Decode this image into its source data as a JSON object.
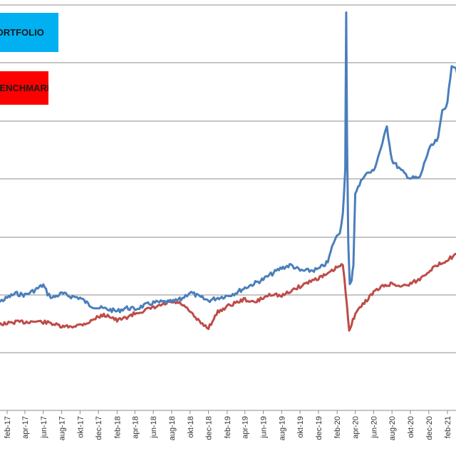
{
  "colors": {
    "portfolio": "#4a7ebb",
    "benchmark": "#be4b48",
    "grid": "#8c8c8c",
    "legend_portfolio_bg": "#00b0f0",
    "legend_benchmark_bg": "#ff0000"
  },
  "legend": {
    "portfolio_label": "PORTFOLIO",
    "benchmark_label": "BENCHMARK"
  },
  "chart_data": {
    "type": "line",
    "xlabel": "",
    "ylabel": "",
    "grid": true,
    "legend_placement": "top-left",
    "x_ticks": [
      "feb-17",
      "apr-17",
      "jun-17",
      "aug-17",
      "okt-17",
      "dec-17",
      "feb-18",
      "apr-18",
      "jun-18",
      "aug-18",
      "okt-18",
      "dec-18",
      "feb-19",
      "apr-19",
      "jun-19",
      "aug-19",
      "okt-19",
      "dec-19",
      "feb-20",
      "apr-20",
      "jun-20",
      "aug-20",
      "okt-20",
      "dec-20",
      "feb-21"
    ],
    "series": [
      {
        "name": "PORTFOLIO",
        "points": [
          [
            "2016-12-01",
            432
          ],
          [
            "2017-01-01",
            425
          ],
          [
            "2017-02-01",
            418
          ],
          [
            "2017-03-01",
            412
          ],
          [
            "2017-04-01",
            414
          ],
          [
            "2017-05-01",
            408
          ],
          [
            "2017-06-01",
            400
          ],
          [
            "2017-06-15",
            412
          ],
          [
            "2017-07-01",
            418
          ],
          [
            "2017-08-01",
            412
          ],
          [
            "2017-09-01",
            416
          ],
          [
            "2017-10-01",
            418
          ],
          [
            "2017-11-01",
            428
          ],
          [
            "2017-12-01",
            432
          ],
          [
            "2018-01-01",
            434
          ],
          [
            "2018-02-01",
            437
          ],
          [
            "2018-03-01",
            432
          ],
          [
            "2018-04-01",
            434
          ],
          [
            "2018-05-01",
            429
          ],
          [
            "2018-06-01",
            425
          ],
          [
            "2018-07-01",
            424
          ],
          [
            "2018-08-01",
            424
          ],
          [
            "2018-09-01",
            420
          ],
          [
            "2018-10-01",
            410
          ],
          [
            "2018-11-01",
            417
          ],
          [
            "2018-12-01",
            422
          ],
          [
            "2019-01-01",
            418
          ],
          [
            "2019-02-01",
            415
          ],
          [
            "2019-03-01",
            411
          ],
          [
            "2019-04-01",
            404
          ],
          [
            "2019-05-01",
            398
          ],
          [
            "2019-06-01",
            392
          ],
          [
            "2019-07-01",
            384
          ],
          [
            "2019-08-01",
            376
          ],
          [
            "2019-09-01",
            372
          ],
          [
            "2019-10-01",
            380
          ],
          [
            "2019-11-01",
            380
          ],
          [
            "2019-12-01",
            378
          ],
          [
            "2020-01-01",
            368
          ],
          [
            "2020-01-20",
            340
          ],
          [
            "2020-02-10",
            325
          ],
          [
            "2020-02-20",
            300
          ],
          [
            "2020-02-28",
            235
          ],
          [
            "2020-03-02",
            20
          ],
          [
            "2020-03-05",
            200
          ],
          [
            "2020-03-09",
            340
          ],
          [
            "2020-03-14",
            400
          ],
          [
            "2020-03-20",
            395
          ],
          [
            "2020-03-26",
            370
          ],
          [
            "2020-04-01",
            270
          ],
          [
            "2020-04-15",
            260
          ],
          [
            "2020-05-01",
            245
          ],
          [
            "2020-06-01",
            240
          ],
          [
            "2020-07-01",
            200
          ],
          [
            "2020-07-15",
            178
          ],
          [
            "2020-08-01",
            225
          ],
          [
            "2020-09-01",
            240
          ],
          [
            "2020-10-01",
            250
          ],
          [
            "2020-11-01",
            250
          ],
          [
            "2020-12-01",
            210
          ],
          [
            "2021-01-01",
            195
          ],
          [
            "2021-01-15",
            155
          ],
          [
            "2021-02-01",
            145
          ],
          [
            "2021-02-15",
            90
          ],
          [
            "2021-03-01",
            95
          ],
          [
            "2021-03-15",
            115
          ]
        ]
      },
      {
        "name": "BENCHMARK",
        "points": [
          [
            "2016-12-01",
            458
          ],
          [
            "2017-01-01",
            455
          ],
          [
            "2017-02-01",
            454
          ],
          [
            "2017-03-01",
            452
          ],
          [
            "2017-04-01",
            452
          ],
          [
            "2017-05-01",
            451
          ],
          [
            "2017-06-01",
            452
          ],
          [
            "2017-07-01",
            454
          ],
          [
            "2017-08-01",
            459
          ],
          [
            "2017-09-01",
            458
          ],
          [
            "2017-10-01",
            456
          ],
          [
            "2017-11-01",
            452
          ],
          [
            "2017-12-01",
            444
          ],
          [
            "2018-01-01",
            442
          ],
          [
            "2018-02-01",
            450
          ],
          [
            "2018-03-01",
            446
          ],
          [
            "2018-04-01",
            440
          ],
          [
            "2018-05-01",
            436
          ],
          [
            "2018-06-01",
            432
          ],
          [
            "2018-07-01",
            428
          ],
          [
            "2018-08-01",
            424
          ],
          [
            "2018-09-01",
            426
          ],
          [
            "2018-10-01",
            438
          ],
          [
            "2018-11-01",
            452
          ],
          [
            "2018-12-01",
            460
          ],
          [
            "2019-01-01",
            438
          ],
          [
            "2019-02-01",
            430
          ],
          [
            "2019-03-01",
            425
          ],
          [
            "2019-04-01",
            420
          ],
          [
            "2019-05-01",
            425
          ],
          [
            "2019-06-01",
            418
          ],
          [
            "2019-07-01",
            412
          ],
          [
            "2019-08-01",
            416
          ],
          [
            "2019-09-01",
            408
          ],
          [
            "2019-10-01",
            402
          ],
          [
            "2019-11-01",
            395
          ],
          [
            "2019-12-01",
            390
          ],
          [
            "2020-01-01",
            385
          ],
          [
            "2020-02-01",
            375
          ],
          [
            "2020-02-20",
            372
          ],
          [
            "2020-03-05",
            430
          ],
          [
            "2020-03-12",
            462
          ],
          [
            "2020-03-20",
            455
          ],
          [
            "2020-04-01",
            440
          ],
          [
            "2020-05-01",
            425
          ],
          [
            "2020-06-01",
            410
          ],
          [
            "2020-07-01",
            402
          ],
          [
            "2020-08-01",
            398
          ],
          [
            "2020-09-01",
            402
          ],
          [
            "2020-10-01",
            398
          ],
          [
            "2020-11-01",
            392
          ],
          [
            "2020-12-01",
            380
          ],
          [
            "2021-01-01",
            372
          ],
          [
            "2021-02-01",
            364
          ],
          [
            "2021-03-01",
            358
          ],
          [
            "2021-03-15",
            355
          ]
        ]
      }
    ]
  }
}
